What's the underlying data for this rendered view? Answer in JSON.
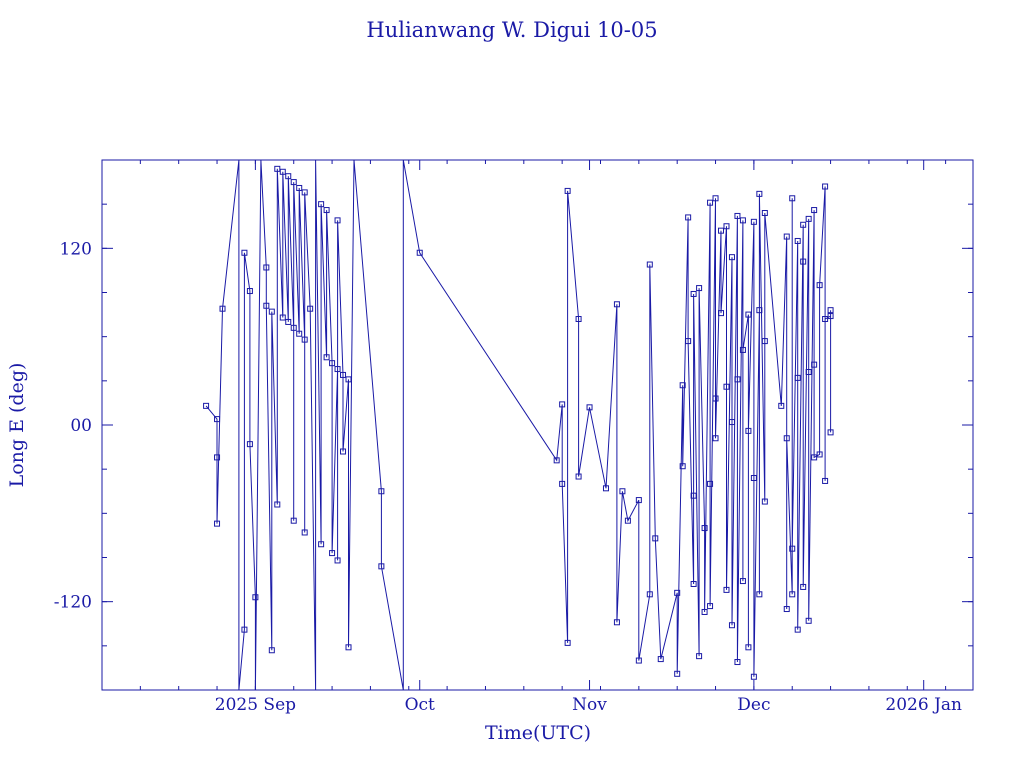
{
  "chart_data": {
    "type": "line",
    "title": "Hulianwang W. Digui 10-05",
    "xlabel": "Time(UTC)",
    "ylabel": "Long E (deg)",
    "xlim": [
      "2025-08-04",
      "2026-01-10"
    ],
    "ylim": [
      -180,
      180
    ],
    "grid": false,
    "marker": "square",
    "color": "#1a1aa6",
    "x_ticks": [
      {
        "date": "2025-09-01",
        "label": "2025 Sep"
      },
      {
        "date": "2025-10-01",
        "label": "Oct"
      },
      {
        "date": "2025-11-01",
        "label": "Nov"
      },
      {
        "date": "2025-12-01",
        "label": "Dec"
      },
      {
        "date": "2026-01-01",
        "label": "2026 Jan"
      }
    ],
    "y_ticks": [
      {
        "value": 120,
        "label": "120"
      },
      {
        "value": 0,
        "label": "00"
      },
      {
        "value": -120,
        "label": "-120"
      }
    ],
    "points": [
      {
        "t": "2025-08-23",
        "y": 13
      },
      {
        "t": "2025-08-25",
        "y": 4
      },
      {
        "t": "2025-08-25",
        "y": -22
      },
      {
        "t": "2025-08-25",
        "y": -67
      },
      {
        "t": "2025-08-26",
        "y": 79
      },
      {
        "t": "2025-08-29",
        "y": 180,
        "wrap": true
      },
      {
        "t": "2025-08-29",
        "y": -180
      },
      {
        "t": "2025-08-30",
        "y": -139
      },
      {
        "t": "2025-08-30",
        "y": 117
      },
      {
        "t": "2025-08-31",
        "y": 91
      },
      {
        "t": "2025-08-31",
        "y": -13
      },
      {
        "t": "2025-09-01",
        "y": -117
      },
      {
        "t": "2025-09-01",
        "y": -180,
        "wrap": true
      },
      {
        "t": "2025-09-02",
        "y": 180
      },
      {
        "t": "2025-09-03",
        "y": 107
      },
      {
        "t": "2025-09-03",
        "y": 81
      },
      {
        "t": "2025-09-04",
        "y": -153
      },
      {
        "t": "2025-09-04",
        "y": 77
      },
      {
        "t": "2025-09-05",
        "y": -54
      },
      {
        "t": "2025-09-05",
        "y": 174
      },
      {
        "t": "2025-09-06",
        "y": 73
      },
      {
        "t": "2025-09-06",
        "y": 172
      },
      {
        "t": "2025-09-07",
        "y": 70
      },
      {
        "t": "2025-09-07",
        "y": 169
      },
      {
        "t": "2025-09-08",
        "y": 66
      },
      {
        "t": "2025-09-08",
        "y": -65
      },
      {
        "t": "2025-09-08",
        "y": 165
      },
      {
        "t": "2025-09-09",
        "y": 62
      },
      {
        "t": "2025-09-09",
        "y": 161
      },
      {
        "t": "2025-09-10",
        "y": 58
      },
      {
        "t": "2025-09-10",
        "y": -73
      },
      {
        "t": "2025-09-10",
        "y": 158
      },
      {
        "t": "2025-09-11",
        "y": 79
      },
      {
        "t": "2025-09-12",
        "y": -180,
        "wrap": true
      },
      {
        "t": "2025-09-12",
        "y": 180
      },
      {
        "t": "2025-09-13",
        "y": -81
      },
      {
        "t": "2025-09-13",
        "y": 150
      },
      {
        "t": "2025-09-14",
        "y": 46
      },
      {
        "t": "2025-09-14",
        "y": 146
      },
      {
        "t": "2025-09-15",
        "y": 42
      },
      {
        "t": "2025-09-15",
        "y": -87
      },
      {
        "t": "2025-09-16",
        "y": 38
      },
      {
        "t": "2025-09-16",
        "y": -92
      },
      {
        "t": "2025-09-16",
        "y": 139
      },
      {
        "t": "2025-09-17",
        "y": 34
      },
      {
        "t": "2025-09-17",
        "y": -18
      },
      {
        "t": "2025-09-18",
        "y": 31
      },
      {
        "t": "2025-09-18",
        "y": -151
      },
      {
        "t": "2025-09-19",
        "y": 180,
        "wrap": true
      },
      {
        "t": "2025-09-24",
        "y": -45
      },
      {
        "t": "2025-09-24",
        "y": -96
      },
      {
        "t": "2025-09-28",
        "y": -180
      },
      {
        "t": "2025-09-28",
        "y": 180,
        "wrap": true
      },
      {
        "t": "2025-10-01",
        "y": 117
      },
      {
        "t": "2025-10-26",
        "y": -24
      },
      {
        "t": "2025-10-27",
        "y": 14
      },
      {
        "t": "2025-10-27",
        "y": -40
      },
      {
        "t": "2025-10-28",
        "y": -148
      },
      {
        "t": "2025-10-28",
        "y": 159
      },
      {
        "t": "2025-10-30",
        "y": 72
      },
      {
        "t": "2025-10-30",
        "y": -35
      },
      {
        "t": "2025-11-01",
        "y": 12
      },
      {
        "t": "2025-11-04",
        "y": -43
      },
      {
        "t": "2025-11-06",
        "y": 82
      },
      {
        "t": "2025-11-06",
        "y": -134
      },
      {
        "t": "2025-11-07",
        "y": -45
      },
      {
        "t": "2025-11-08",
        "y": -65
      },
      {
        "t": "2025-11-10",
        "y": -51
      },
      {
        "t": "2025-11-10",
        "y": -160
      },
      {
        "t": "2025-11-12",
        "y": -115
      },
      {
        "t": "2025-11-12",
        "y": 109
      },
      {
        "t": "2025-11-13",
        "y": -77
      },
      {
        "t": "2025-11-14",
        "y": -159
      },
      {
        "t": "2025-11-17",
        "y": -114
      },
      {
        "t": "2025-11-17",
        "y": -169
      },
      {
        "t": "2025-11-18",
        "y": 27
      },
      {
        "t": "2025-11-18",
        "y": -28
      },
      {
        "t": "2025-11-19",
        "y": 141
      },
      {
        "t": "2025-11-19",
        "y": 57
      },
      {
        "t": "2025-11-20",
        "y": -108
      },
      {
        "t": "2025-11-20",
        "y": -48
      },
      {
        "t": "2025-11-20",
        "y": 89
      },
      {
        "t": "2025-11-21",
        "y": -157
      },
      {
        "t": "2025-11-21",
        "y": 93
      },
      {
        "t": "2025-11-22",
        "y": -70
      },
      {
        "t": "2025-11-22",
        "y": -127
      },
      {
        "t": "2025-11-23",
        "y": 151
      },
      {
        "t": "2025-11-23",
        "y": -40
      },
      {
        "t": "2025-11-23",
        "y": -123
      },
      {
        "t": "2025-11-24",
        "y": 154
      },
      {
        "t": "2025-11-24",
        "y": 18
      },
      {
        "t": "2025-11-24",
        "y": -9
      },
      {
        "t": "2025-11-25",
        "y": 132
      },
      {
        "t": "2025-11-25",
        "y": 76
      },
      {
        "t": "2025-11-26",
        "y": 135
      },
      {
        "t": "2025-11-26",
        "y": 26
      },
      {
        "t": "2025-11-26",
        "y": -112
      },
      {
        "t": "2025-11-27",
        "y": 114
      },
      {
        "t": "2025-11-27",
        "y": 2
      },
      {
        "t": "2025-11-27",
        "y": -136
      },
      {
        "t": "2025-11-28",
        "y": 142
      },
      {
        "t": "2025-11-28",
        "y": 31
      },
      {
        "t": "2025-11-28",
        "y": -161
      },
      {
        "t": "2025-11-29",
        "y": 139
      },
      {
        "t": "2025-11-29",
        "y": -106
      },
      {
        "t": "2025-11-29",
        "y": 51
      },
      {
        "t": "2025-11-30",
        "y": 75
      },
      {
        "t": "2025-11-30",
        "y": -151
      },
      {
        "t": "2025-11-30",
        "y": -4
      },
      {
        "t": "2025-12-01",
        "y": 138
      },
      {
        "t": "2025-12-01",
        "y": -36
      },
      {
        "t": "2025-12-01",
        "y": -171
      },
      {
        "t": "2025-12-02",
        "y": 78
      },
      {
        "t": "2025-12-02",
        "y": -115
      },
      {
        "t": "2025-12-02",
        "y": 157
      },
      {
        "t": "2025-12-03",
        "y": -52
      },
      {
        "t": "2025-12-03",
        "y": 57
      },
      {
        "t": "2025-12-03",
        "y": 144
      },
      {
        "t": "2025-12-06",
        "y": 13
      },
      {
        "t": "2025-12-07",
        "y": 128
      },
      {
        "t": "2025-12-07",
        "y": -125
      },
      {
        "t": "2025-12-07",
        "y": -9
      },
      {
        "t": "2025-12-08",
        "y": -115
      },
      {
        "t": "2025-12-08",
        "y": 154
      },
      {
        "t": "2025-12-08",
        "y": -84
      },
      {
        "t": "2025-12-09",
        "y": 125
      },
      {
        "t": "2025-12-09",
        "y": 32
      },
      {
        "t": "2025-12-09",
        "y": -139
      },
      {
        "t": "2025-12-10",
        "y": 136
      },
      {
        "t": "2025-12-10",
        "y": 111
      },
      {
        "t": "2025-12-10",
        "y": -110
      },
      {
        "t": "2025-12-11",
        "y": 140
      },
      {
        "t": "2025-12-11",
        "y": 36
      },
      {
        "t": "2025-12-11",
        "y": -133
      },
      {
        "t": "2025-12-12",
        "y": 146
      },
      {
        "t": "2025-12-12",
        "y": 41
      },
      {
        "t": "2025-12-12",
        "y": -22
      },
      {
        "t": "2025-12-13",
        "y": -20
      },
      {
        "t": "2025-12-13",
        "y": 95
      },
      {
        "t": "2025-12-14",
        "y": 162
      },
      {
        "t": "2025-12-14",
        "y": -38
      },
      {
        "t": "2025-12-14",
        "y": 72
      },
      {
        "t": "2025-12-15",
        "y": 74
      },
      {
        "t": "2025-12-15",
        "y": -5
      },
      {
        "t": "2025-12-15",
        "y": 78
      }
    ]
  }
}
